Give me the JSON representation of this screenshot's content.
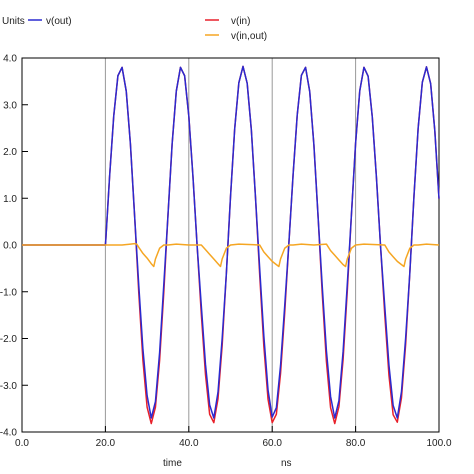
{
  "chart_data": {
    "type": "line",
    "ylabel": "Units",
    "xlabel": "time",
    "xunit": "ns",
    "xlim": [
      0,
      100
    ],
    "ylim": [
      -4,
      4
    ],
    "x_ticks": [
      {
        "value": 0,
        "label": "0.0"
      },
      {
        "value": 20,
        "label": "20.0"
      },
      {
        "value": 40,
        "label": "40.0"
      },
      {
        "value": 60,
        "label": "60.0"
      },
      {
        "value": 80,
        "label": "80.0"
      },
      {
        "value": 100,
        "label": "100.0"
      }
    ],
    "y_ticks": [
      {
        "value": 4,
        "label": "4.0"
      },
      {
        "value": 3,
        "label": "3.0"
      },
      {
        "value": 2,
        "label": "2.0"
      },
      {
        "value": 1,
        "label": "1.0"
      },
      {
        "value": 0,
        "label": "0.0"
      },
      {
        "value": -1,
        "label": "-1.0"
      },
      {
        "value": -2,
        "label": "-2.0"
      },
      {
        "value": -3,
        "label": "-3.0"
      },
      {
        "value": -4,
        "label": "-4.0"
      }
    ],
    "grid": true,
    "series": [
      {
        "name": "v(in)",
        "color": "#e8202a",
        "x": [
          0,
          20,
          20.1,
          21,
          22,
          23,
          24,
          25,
          26,
          27,
          28,
          29,
          30,
          31,
          32,
          33,
          34,
          35,
          36,
          37,
          38,
          39,
          40,
          41,
          42,
          43,
          44,
          45,
          46,
          47,
          48,
          49,
          50,
          51,
          52,
          53,
          54,
          55,
          56,
          57,
          58,
          59,
          60,
          61,
          62,
          63,
          64,
          65,
          66,
          67,
          68,
          69,
          70,
          71,
          72,
          73,
          74,
          75,
          76,
          77,
          78,
          79,
          80,
          81,
          82,
          83,
          84,
          85,
          86,
          87,
          88,
          89,
          90,
          91,
          92,
          93,
          94,
          95,
          96,
          97,
          98,
          99,
          100
        ],
        "y": [
          0,
          0,
          0.12,
          1.46,
          2.76,
          3.62,
          3.8,
          3.29,
          2.16,
          0.63,
          -1.02,
          -2.47,
          -3.47,
          -3.82,
          -3.47,
          -2.47,
          -1.02,
          0.63,
          2.16,
          3.29,
          3.8,
          3.62,
          2.76,
          1.46,
          -0.02,
          -1.48,
          -2.77,
          -3.62,
          -3.8,
          -3.29,
          -2.15,
          -0.62,
          1.03,
          2.48,
          3.47,
          3.82,
          3.46,
          2.46,
          1.01,
          -0.64,
          -2.17,
          -3.3,
          -3.8,
          -3.62,
          -2.75,
          -1.45,
          0.04,
          1.49,
          2.78,
          3.63,
          3.8,
          3.28,
          2.14,
          0.61,
          -1.04,
          -2.49,
          -3.48,
          -3.82,
          -3.46,
          -2.45,
          -1.0,
          0.65,
          2.18,
          3.3,
          3.8,
          3.61,
          2.74,
          1.44,
          -0.05,
          -1.5,
          -2.79,
          -3.63,
          -3.79,
          -3.27,
          -2.13,
          -0.6,
          1.05,
          2.5,
          3.48,
          3.81,
          3.45,
          2.44,
          0.99
        ]
      },
      {
        "name": "v(out)",
        "color": "#2a2ad0",
        "x": [
          0,
          20,
          20.1,
          21,
          22,
          23,
          24,
          25,
          26,
          27,
          28,
          29,
          30,
          31,
          32,
          33,
          34,
          35,
          36,
          37,
          38,
          39,
          40,
          41,
          42,
          43,
          44,
          45,
          46,
          47,
          48,
          49,
          50,
          51,
          52,
          53,
          54,
          55,
          56,
          57,
          58,
          59,
          60,
          61,
          62,
          63,
          64,
          65,
          66,
          67,
          68,
          69,
          70,
          71,
          72,
          73,
          74,
          75,
          76,
          77,
          78,
          79,
          80,
          81,
          82,
          83,
          84,
          85,
          86,
          87,
          88,
          89,
          90,
          91,
          92,
          93,
          94,
          95,
          96,
          97,
          98,
          99,
          100
        ],
        "y": [
          0,
          0,
          0.12,
          1.46,
          2.76,
          3.62,
          3.8,
          3.29,
          2.16,
          0.63,
          -0.86,
          -2.23,
          -3.22,
          -3.7,
          -3.35,
          -2.3,
          -0.85,
          0.63,
          2.16,
          3.29,
          3.8,
          3.62,
          2.76,
          1.46,
          -0.02,
          -1.3,
          -2.55,
          -3.42,
          -3.7,
          -3.15,
          -2.0,
          -0.62,
          1.03,
          2.48,
          3.47,
          3.82,
          3.46,
          2.46,
          1.01,
          -0.5,
          -1.95,
          -3.1,
          -3.68,
          -3.48,
          -2.58,
          -1.3,
          0.04,
          1.49,
          2.78,
          3.63,
          3.8,
          3.28,
          2.14,
          0.61,
          -0.88,
          -2.26,
          -3.24,
          -3.7,
          -3.33,
          -2.28,
          -0.85,
          0.65,
          2.18,
          3.3,
          3.8,
          3.61,
          2.74,
          1.44,
          -0.05,
          -1.32,
          -2.57,
          -3.43,
          -3.7,
          -3.14,
          -1.99,
          -0.6,
          1.05,
          2.5,
          3.48,
          3.81,
          3.45,
          2.44,
          0.99
        ]
      },
      {
        "name": "v(in,out)",
        "color": "#f5a623",
        "x": [
          0,
          20,
          22,
          24,
          26,
          27,
          27.5,
          28,
          29,
          30,
          31,
          31.6,
          32,
          33,
          34,
          35,
          37,
          40,
          43,
          44,
          45,
          46,
          47,
          47.6,
          48,
          49,
          50,
          52,
          57,
          58,
          59,
          60,
          61,
          61.6,
          62,
          63,
          64,
          65,
          67,
          70,
          73,
          74,
          75,
          76,
          77,
          77.6,
          78,
          79,
          80,
          82,
          87,
          88,
          89,
          90,
          91,
          91.6,
          92,
          93,
          94,
          95,
          97,
          100
        ],
        "y": [
          0,
          0,
          0,
          0,
          0.02,
          0.03,
          0.02,
          -0.05,
          -0.18,
          -0.28,
          -0.4,
          -0.46,
          -0.3,
          -0.07,
          0,
          0,
          0.02,
          0,
          0,
          -0.1,
          -0.2,
          -0.3,
          -0.4,
          -0.46,
          -0.3,
          -0.07,
          0,
          0.02,
          0,
          -0.15,
          -0.25,
          -0.35,
          -0.42,
          -0.46,
          -0.3,
          -0.07,
          0,
          0,
          0.02,
          0,
          0.02,
          -0.12,
          -0.22,
          -0.32,
          -0.42,
          -0.46,
          -0.3,
          -0.07,
          0,
          0.02,
          0,
          -0.15,
          -0.25,
          -0.35,
          -0.42,
          -0.46,
          -0.3,
          -0.07,
          0,
          0,
          0.02,
          0
        ]
      }
    ],
    "legend": [
      {
        "name": "v(out)",
        "color": "#2a2ad0",
        "position": "top-left"
      },
      {
        "name": "v(in)",
        "color": "#e8202a",
        "position": "top-right"
      },
      {
        "name": "v(in,out)",
        "color": "#f5a623",
        "position": "top-right"
      }
    ]
  }
}
